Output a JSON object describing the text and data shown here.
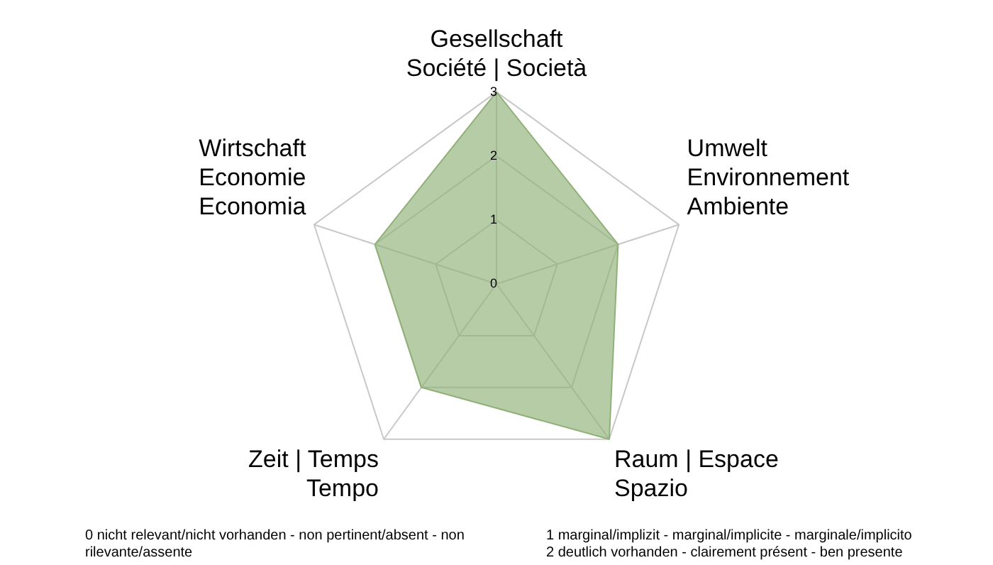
{
  "chart_data": {
    "type": "radar",
    "categories": [
      "Gesellschaft\nSociété | Società",
      "Umwelt\nEnvironnement\nAmbiente",
      "Raum | Espace\nSpazio",
      "Zeit | Temps\nTempo",
      "Wirtschaft\nEconomie\nEconomia"
    ],
    "series": [
      {
        "color": "#8fb178",
        "values": [
          3,
          2,
          3,
          2,
          2
        ]
      }
    ],
    "ylim": [
      0,
      3
    ],
    "yticks": [
      0,
      1,
      2,
      3
    ],
    "grid": true,
    "legend": false,
    "marker": "none",
    "annotations": [
      "0 nicht relevant/nicht vorhanden  - non pertinent/absent - non rilevante/assente",
      "1 marginal/implizit - marginal/implicite - marginale/implicito",
      "2 deutlich vorhanden  - clairement présent - ben presente"
    ]
  }
}
